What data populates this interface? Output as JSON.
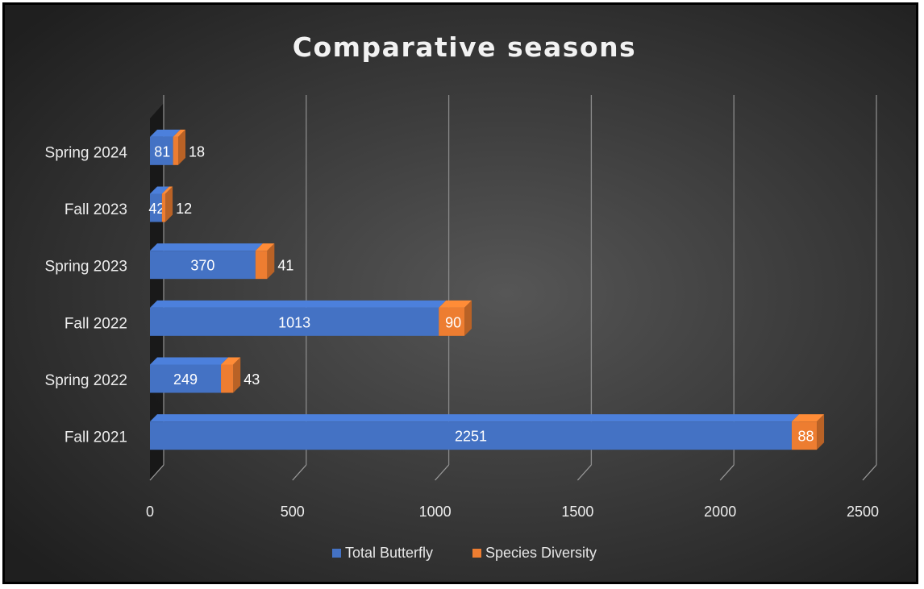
{
  "chart_data": {
    "type": "bar",
    "orientation": "horizontal",
    "stacked": true,
    "style_3d": true,
    "title": "Comparative seasons",
    "categories": [
      "Fall 2021",
      "Spring  2022",
      "Fall 2022",
      "Spring 2023",
      "Fall 2023",
      "Spring 2024"
    ],
    "series": [
      {
        "name": "Total Butterfly",
        "color": "#4472c4",
        "values": [
          2251,
          249,
          1013,
          370,
          42,
          81
        ]
      },
      {
        "name": "Species Diversity",
        "color": "#ed7d31",
        "values": [
          88,
          43,
          90,
          41,
          12,
          18
        ]
      }
    ],
    "xlim": [
      0,
      2500
    ],
    "x_ticks": [
      0,
      500,
      1000,
      1500,
      2000,
      2500
    ],
    "xlabel": "",
    "ylabel": "",
    "grid": true,
    "legend_position": "bottom",
    "background_color": "#3a3a3a"
  }
}
